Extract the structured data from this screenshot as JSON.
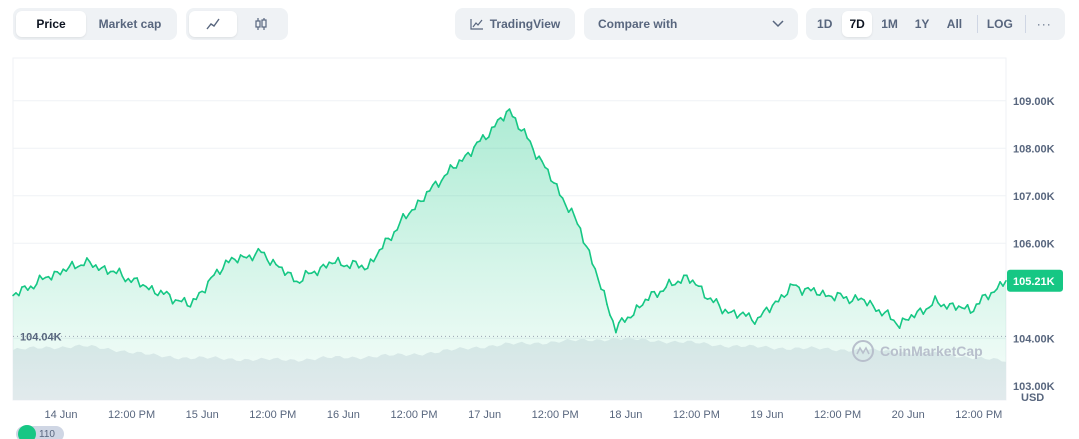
{
  "toolbar": {
    "kind_options": [
      "Price",
      "Market cap"
    ],
    "kind_active": "Price",
    "tradingview_label": "TradingView",
    "compare_label": "Compare with",
    "ranges": [
      "1D",
      "7D",
      "1M",
      "1Y",
      "All"
    ],
    "range_active": "7D",
    "log_label": "LOG",
    "more_label": "···",
    "icons": {
      "line": "line-chart-icon",
      "candle": "candlestick-icon",
      "tradingview": "tradingview-chart-icon",
      "compare": "chevron-down-icon"
    }
  },
  "colors": {
    "up": "#16c784",
    "down": "#ea3943",
    "grid": "#eff2f5",
    "volume": "#e8ebf0"
  },
  "watermark": "CoinMarketCap",
  "badge_text": "110",
  "chart_data": {
    "type": "area",
    "y_unit": "USD",
    "ylim": [
      102700,
      109900
    ],
    "y_ticks": [
      "109.00K",
      "108.00K",
      "107.00K",
      "106.00K",
      "104.00K",
      "103.00K"
    ],
    "x_labels": [
      "14 Jun",
      "12:00 PM",
      "15 Jun",
      "12:00 PM",
      "16 Jun",
      "12:00 PM",
      "17 Jun",
      "12:00 PM",
      "18 Jun",
      "12:00 PM",
      "19 Jun",
      "12:00 PM",
      "20 Jun",
      "12:00 PM"
    ],
    "reference_low": "104.04K",
    "reference_low_value": 104040,
    "current_price": "105.21K",
    "current_price_value": 105210,
    "x": [
      "13 Jun 18:00",
      "14 Jun 00:00",
      "14 Jun 06:00",
      "14 Jun 12:00",
      "14 Jun 18:00",
      "15 Jun 00:00",
      "15 Jun 06:00",
      "15 Jun 12:00",
      "15 Jun 18:00",
      "16 Jun 00:00",
      "16 Jun 06:00",
      "16 Jun 12:00",
      "16 Jun 18:00",
      "17 Jun 00:00",
      "17 Jun 06:00",
      "17 Jun 12:00",
      "17 Jun 18:00",
      "18 Jun 00:00",
      "18 Jun 06:00",
      "18 Jun 12:00",
      "18 Jun 18:00",
      "19 Jun 00:00",
      "19 Jun 06:00",
      "19 Jun 12:00",
      "19 Jun 18:00",
      "20 Jun 00:00",
      "20 Jun 06:00",
      "20 Jun 12:00",
      "20 Jun 16:00"
    ],
    "series": [
      {
        "values": [
          104900,
          105300,
          105600,
          105350,
          105000,
          104700,
          105600,
          105800,
          105200,
          105600,
          105500,
          106500,
          107300,
          108000,
          108800,
          107600,
          106300,
          104200,
          104900,
          105300,
          104600,
          104400,
          105100,
          104900,
          104800,
          104300,
          104750,
          104600,
          105210
        ]
      }
    ],
    "volume": [
      0.52,
      0.55,
      0.56,
      0.52,
      0.46,
      0.44,
      0.43,
      0.42,
      0.42,
      0.44,
      0.45,
      0.47,
      0.5,
      0.55,
      0.58,
      0.6,
      0.62,
      0.64,
      0.62,
      0.6,
      0.57,
      0.55,
      0.54,
      0.53,
      0.52,
      0.5,
      0.48,
      0.45,
      0.4
    ]
  }
}
